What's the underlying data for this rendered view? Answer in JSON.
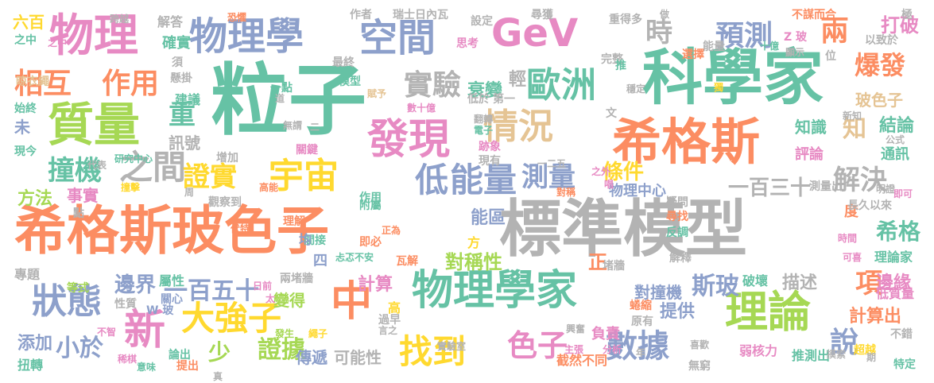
{
  "palette": {
    "orange": "#fc8d62",
    "teal": "#66c2a5",
    "blue": "#8da0cb",
    "pink": "#e78ac3",
    "green": "#a6d854",
    "yellow": "#ffd92f",
    "tan": "#e5c494",
    "gray": "#b3b3b3"
  },
  "words": [
    {
      "text": "標準模型",
      "c": "gray"
    },
    {
      "text": "希格斯玻色子",
      "c": "orange"
    },
    {
      "text": "粒子",
      "c": "teal"
    },
    {
      "text": "科學家",
      "c": "teal"
    },
    {
      "text": "希格斯",
      "c": "orange"
    },
    {
      "text": "物理",
      "c": "pink"
    },
    {
      "text": "物理學家",
      "c": "teal"
    },
    {
      "text": "物理學",
      "c": "blue"
    },
    {
      "text": "空間",
      "c": "blue"
    },
    {
      "text": "GeV",
      "c": "pink"
    },
    {
      "text": "質量",
      "c": "green"
    },
    {
      "text": "發現",
      "c": "pink"
    },
    {
      "text": "理論",
      "c": "green"
    },
    {
      "text": "情況",
      "c": "tan"
    },
    {
      "text": "歐洲",
      "c": "teal"
    },
    {
      "text": "中",
      "c": "orange"
    },
    {
      "text": "宇宙",
      "c": "yellow"
    },
    {
      "text": "新",
      "c": "pink"
    },
    {
      "text": "大強子",
      "c": "yellow"
    },
    {
      "text": "找到",
      "c": "yellow"
    },
    {
      "text": "相互",
      "c": "orange"
    },
    {
      "text": "作用",
      "c": "orange"
    },
    {
      "text": "狀態",
      "c": "blue"
    },
    {
      "text": "實驗",
      "c": "gray"
    },
    {
      "text": "預測",
      "c": "blue"
    },
    {
      "text": "爆發",
      "c": "orange"
    },
    {
      "text": "兩",
      "c": "orange"
    },
    {
      "text": "時",
      "c": "gray"
    },
    {
      "text": "之間",
      "c": "gray"
    },
    {
      "text": "低",
      "c": "blue"
    },
    {
      "text": "能量",
      "c": "blue"
    },
    {
      "text": "撞機",
      "c": "teal"
    },
    {
      "text": "證實",
      "c": "yellow"
    },
    {
      "text": "測量",
      "c": "blue"
    },
    {
      "text": "解決",
      "c": "gray"
    },
    {
      "text": "重",
      "c": "teal"
    },
    {
      "text": "數據",
      "c": "blue"
    },
    {
      "text": "色子",
      "c": "pink"
    },
    {
      "text": "說",
      "c": "blue"
    },
    {
      "text": "項",
      "c": "orange"
    },
    {
      "text": "小於",
      "c": "blue"
    },
    {
      "text": "證據",
      "c": "green"
    },
    {
      "text": "少",
      "c": "green"
    },
    {
      "text": "斯玻",
      "c": "blue"
    },
    {
      "text": "對稱性",
      "c": "green"
    },
    {
      "text": "條件",
      "c": "yellow"
    },
    {
      "text": "希格",
      "c": "teal"
    },
    {
      "text": "一百五十",
      "c": "blue"
    },
    {
      "text": "邊界",
      "c": "blue"
    },
    {
      "text": "一百三十",
      "c": "gray"
    },
    {
      "text": "計算出",
      "c": "orange"
    },
    {
      "text": "邊緣",
      "c": "pink"
    },
    {
      "text": "打破",
      "c": "pink"
    },
    {
      "text": "知識",
      "c": "teal"
    },
    {
      "text": "結論",
      "c": "teal"
    },
    {
      "text": "衰變",
      "c": "teal"
    },
    {
      "text": "知",
      "c": "tan"
    },
    {
      "text": "玻色子",
      "c": "tan"
    },
    {
      "text": "計算",
      "c": "pink"
    },
    {
      "text": "添加",
      "c": "blue"
    },
    {
      "text": "方法",
      "c": "green"
    },
    {
      "text": "提供",
      "c": "blue"
    },
    {
      "text": "描述",
      "c": "gray"
    },
    {
      "text": "能區",
      "c": "blue"
    },
    {
      "text": "物理中心",
      "c": "blue"
    },
    {
      "text": "對撞機",
      "c": "blue"
    },
    {
      "text": "可能性",
      "c": "gray"
    },
    {
      "text": "傳遞",
      "c": "blue"
    },
    {
      "text": "變得",
      "c": "green"
    },
    {
      "text": "六百",
      "c": "yellow"
    },
    {
      "text": "未",
      "c": "blue"
    },
    {
      "text": "事實",
      "c": "pink"
    },
    {
      "text": "專題",
      "c": "gray"
    },
    {
      "text": "訊號",
      "c": "gray"
    },
    {
      "text": "確實",
      "c": "teal"
    },
    {
      "text": "解答",
      "c": "gray"
    },
    {
      "text": "建議",
      "c": "teal"
    },
    {
      "text": "輕",
      "c": "gray"
    },
    {
      "text": "正",
      "c": "orange"
    },
    {
      "text": "度",
      "c": "orange"
    },
    {
      "text": "評論",
      "c": "pink"
    },
    {
      "text": "通訊",
      "c": "teal"
    },
    {
      "text": "長久以來",
      "c": "gray"
    },
    {
      "text": "破壞",
      "c": "teal"
    },
    {
      "text": "低質量",
      "c": "pink"
    },
    {
      "text": "理論家",
      "c": "teal"
    },
    {
      "text": "截然不同",
      "c": "orange"
    },
    {
      "text": "負責",
      "c": "pink"
    },
    {
      "text": "弱核力",
      "c": "pink"
    },
    {
      "text": "推測出",
      "c": "teal"
    },
    {
      "text": "特定",
      "c": "teal"
    },
    {
      "text": "超越",
      "c": "yellow"
    },
    {
      "text": "不錯",
      "c": "gray"
    },
    {
      "text": "扭轉",
      "c": "teal"
    },
    {
      "text": "意味",
      "c": "teal"
    },
    {
      "text": "論出",
      "c": "teal"
    },
    {
      "text": "提出",
      "c": "orange"
    },
    {
      "text": "不智",
      "c": "pink"
    },
    {
      "text": "兩堵牆",
      "c": "gray"
    },
    {
      "text": "間接",
      "c": "teal"
    },
    {
      "text": "附屬",
      "c": "teal"
    },
    {
      "text": "增加",
      "c": "gray"
    },
    {
      "text": "現今",
      "c": "teal"
    },
    {
      "text": "始終",
      "c": "teal"
    },
    {
      "text": "晾衣繩",
      "c": "tan"
    },
    {
      "text": "之中",
      "c": "teal"
    },
    {
      "text": "設定",
      "c": "gray"
    },
    {
      "text": "重得多",
      "c": "gray"
    },
    {
      "text": "完整",
      "c": "gray"
    },
    {
      "text": "不謀而合",
      "c": "orange"
    },
    {
      "text": "以致於",
      "c": "gray"
    },
    {
      "text": "能量",
      "c": "gray"
    },
    {
      "text": "一點",
      "c": "teal"
    },
    {
      "text": "模型",
      "c": "teal"
    },
    {
      "text": "作者",
      "c": "gray"
    },
    {
      "text": "瑞士日內瓦",
      "c": "gray"
    },
    {
      "text": "尋獲",
      "c": "gray"
    },
    {
      "text": "選擇",
      "c": "orange"
    },
    {
      "text": "思考",
      "c": "pink"
    },
    {
      "text": "最終",
      "c": "gray"
    },
    {
      "text": "第一",
      "c": "gray"
    },
    {
      "text": "低於",
      "c": "gray"
    },
    {
      "text": "觀察到",
      "c": "gray"
    },
    {
      "text": "作用",
      "c": "teal"
    },
    {
      "text": "理解",
      "c": "orange"
    },
    {
      "text": "即必",
      "c": "orange"
    },
    {
      "text": "瓦解",
      "c": "orange"
    },
    {
      "text": "四",
      "c": "blue"
    },
    {
      "text": "均",
      "c": "blue"
    },
    {
      "text": "屬性",
      "c": "teal"
    },
    {
      "text": "關心",
      "c": "blue"
    },
    {
      "text": "等式",
      "c": "green"
    },
    {
      "text": "方",
      "c": "yellow"
    },
    {
      "text": "高",
      "c": "yellow"
    },
    {
      "text": "過早",
      "c": "gray"
    },
    {
      "text": "堵牆",
      "c": "gray"
    },
    {
      "text": "蜷縮",
      "c": "orange"
    },
    {
      "text": "原有",
      "c": "gray"
    },
    {
      "text": "反調",
      "c": "teal"
    },
    {
      "text": "解釋",
      "c": "gray"
    },
    {
      "text": "尋找",
      "c": "orange"
    },
    {
      "text": "疑問",
      "c": "gray"
    },
    {
      "text": "測量出",
      "c": "gray"
    },
    {
      "text": "無窮",
      "c": "gray"
    },
    {
      "text": "喜歡",
      "c": "gray"
    },
    {
      "text": "分析",
      "c": "pink"
    },
    {
      "text": "主張",
      "c": "pink"
    },
    {
      "text": "一二五",
      "c": "gray"
    },
    {
      "text": "對稱",
      "c": "orange"
    },
    {
      "text": "關鍵",
      "c": "pink"
    },
    {
      "text": "跡象",
      "c": "pink"
    },
    {
      "text": "現有",
      "c": "gray"
    },
    {
      "text": "正為",
      "c": "orange"
    },
    {
      "text": "唱",
      "c": "pink"
    },
    {
      "text": "之外",
      "c": "pink"
    },
    {
      "text": "時間",
      "c": "pink"
    },
    {
      "text": "可喜",
      "c": "pink"
    },
    {
      "text": "穩定",
      "c": "gray"
    },
    {
      "text": "十億",
      "c": "teal"
    },
    {
      "text": "顯示",
      "c": "gray"
    },
    {
      "text": "位",
      "c": "gray"
    },
    {
      "text": "極",
      "c": "gray"
    },
    {
      "text": "Z 玻",
      "c": "pink"
    },
    {
      "text": "數十億",
      "c": "pink"
    },
    {
      "text": "翻轉",
      "c": "gray"
    },
    {
      "text": "電子",
      "c": "teal"
    },
    {
      "text": "代表",
      "c": "gray"
    },
    {
      "text": "研究中心",
      "c": "teal"
    },
    {
      "text": "須",
      "c": "gray"
    },
    {
      "text": "懸掛",
      "c": "gray"
    },
    {
      "text": "跨越",
      "c": "gray"
    },
    {
      "text": "恐懼",
      "c": "orange"
    },
    {
      "text": "W 玻",
      "c": "blue"
    },
    {
      "text": "發生",
      "c": "green"
    },
    {
      "text": "言之",
      "c": "gray"
    },
    {
      "text": "繩子",
      "c": "yellow"
    },
    {
      "text": "日前",
      "c": "pink"
    },
    {
      "text": "太",
      "c": "pink"
    },
    {
      "text": "性質",
      "c": "gray"
    },
    {
      "text": "點",
      "c": "gray"
    },
    {
      "text": "忐忑不安",
      "c": "teal"
    },
    {
      "text": "伏特",
      "c": "orange"
    },
    {
      "text": "高能",
      "c": "orange"
    },
    {
      "text": "文",
      "c": "gray"
    },
    {
      "text": "推",
      "c": "teal"
    },
    {
      "text": "做",
      "c": "gray"
    },
    {
      "text": "無謂",
      "c": "gray"
    },
    {
      "text": "二",
      "c": "gray"
    },
    {
      "text": "明證",
      "c": "gray"
    },
    {
      "text": "公式",
      "c": "gray"
    },
    {
      "text": "新知",
      "c": "gray"
    },
    {
      "text": "即可",
      "c": "pink"
    },
    {
      "text": "實驗室",
      "c": "gray"
    },
    {
      "text": "年",
      "c": "gray"
    },
    {
      "text": "周",
      "c": "gray"
    },
    {
      "text": "期",
      "c": "gray"
    },
    {
      "text": "興奮",
      "c": "gray"
    },
    {
      "text": "真",
      "c": "gray"
    },
    {
      "text": "摸索",
      "c": "gray"
    },
    {
      "text": "撞擊",
      "c": "yellow"
    },
    {
      "text": "賦予",
      "c": "tan"
    },
    {
      "text": "道",
      "c": "gray"
    },
    {
      "text": "獨",
      "c": "yellow"
    },
    {
      "text": "稀棋",
      "c": "pink"
    },
    {
      "text": "之中",
      "c": "pink"
    }
  ]
}
